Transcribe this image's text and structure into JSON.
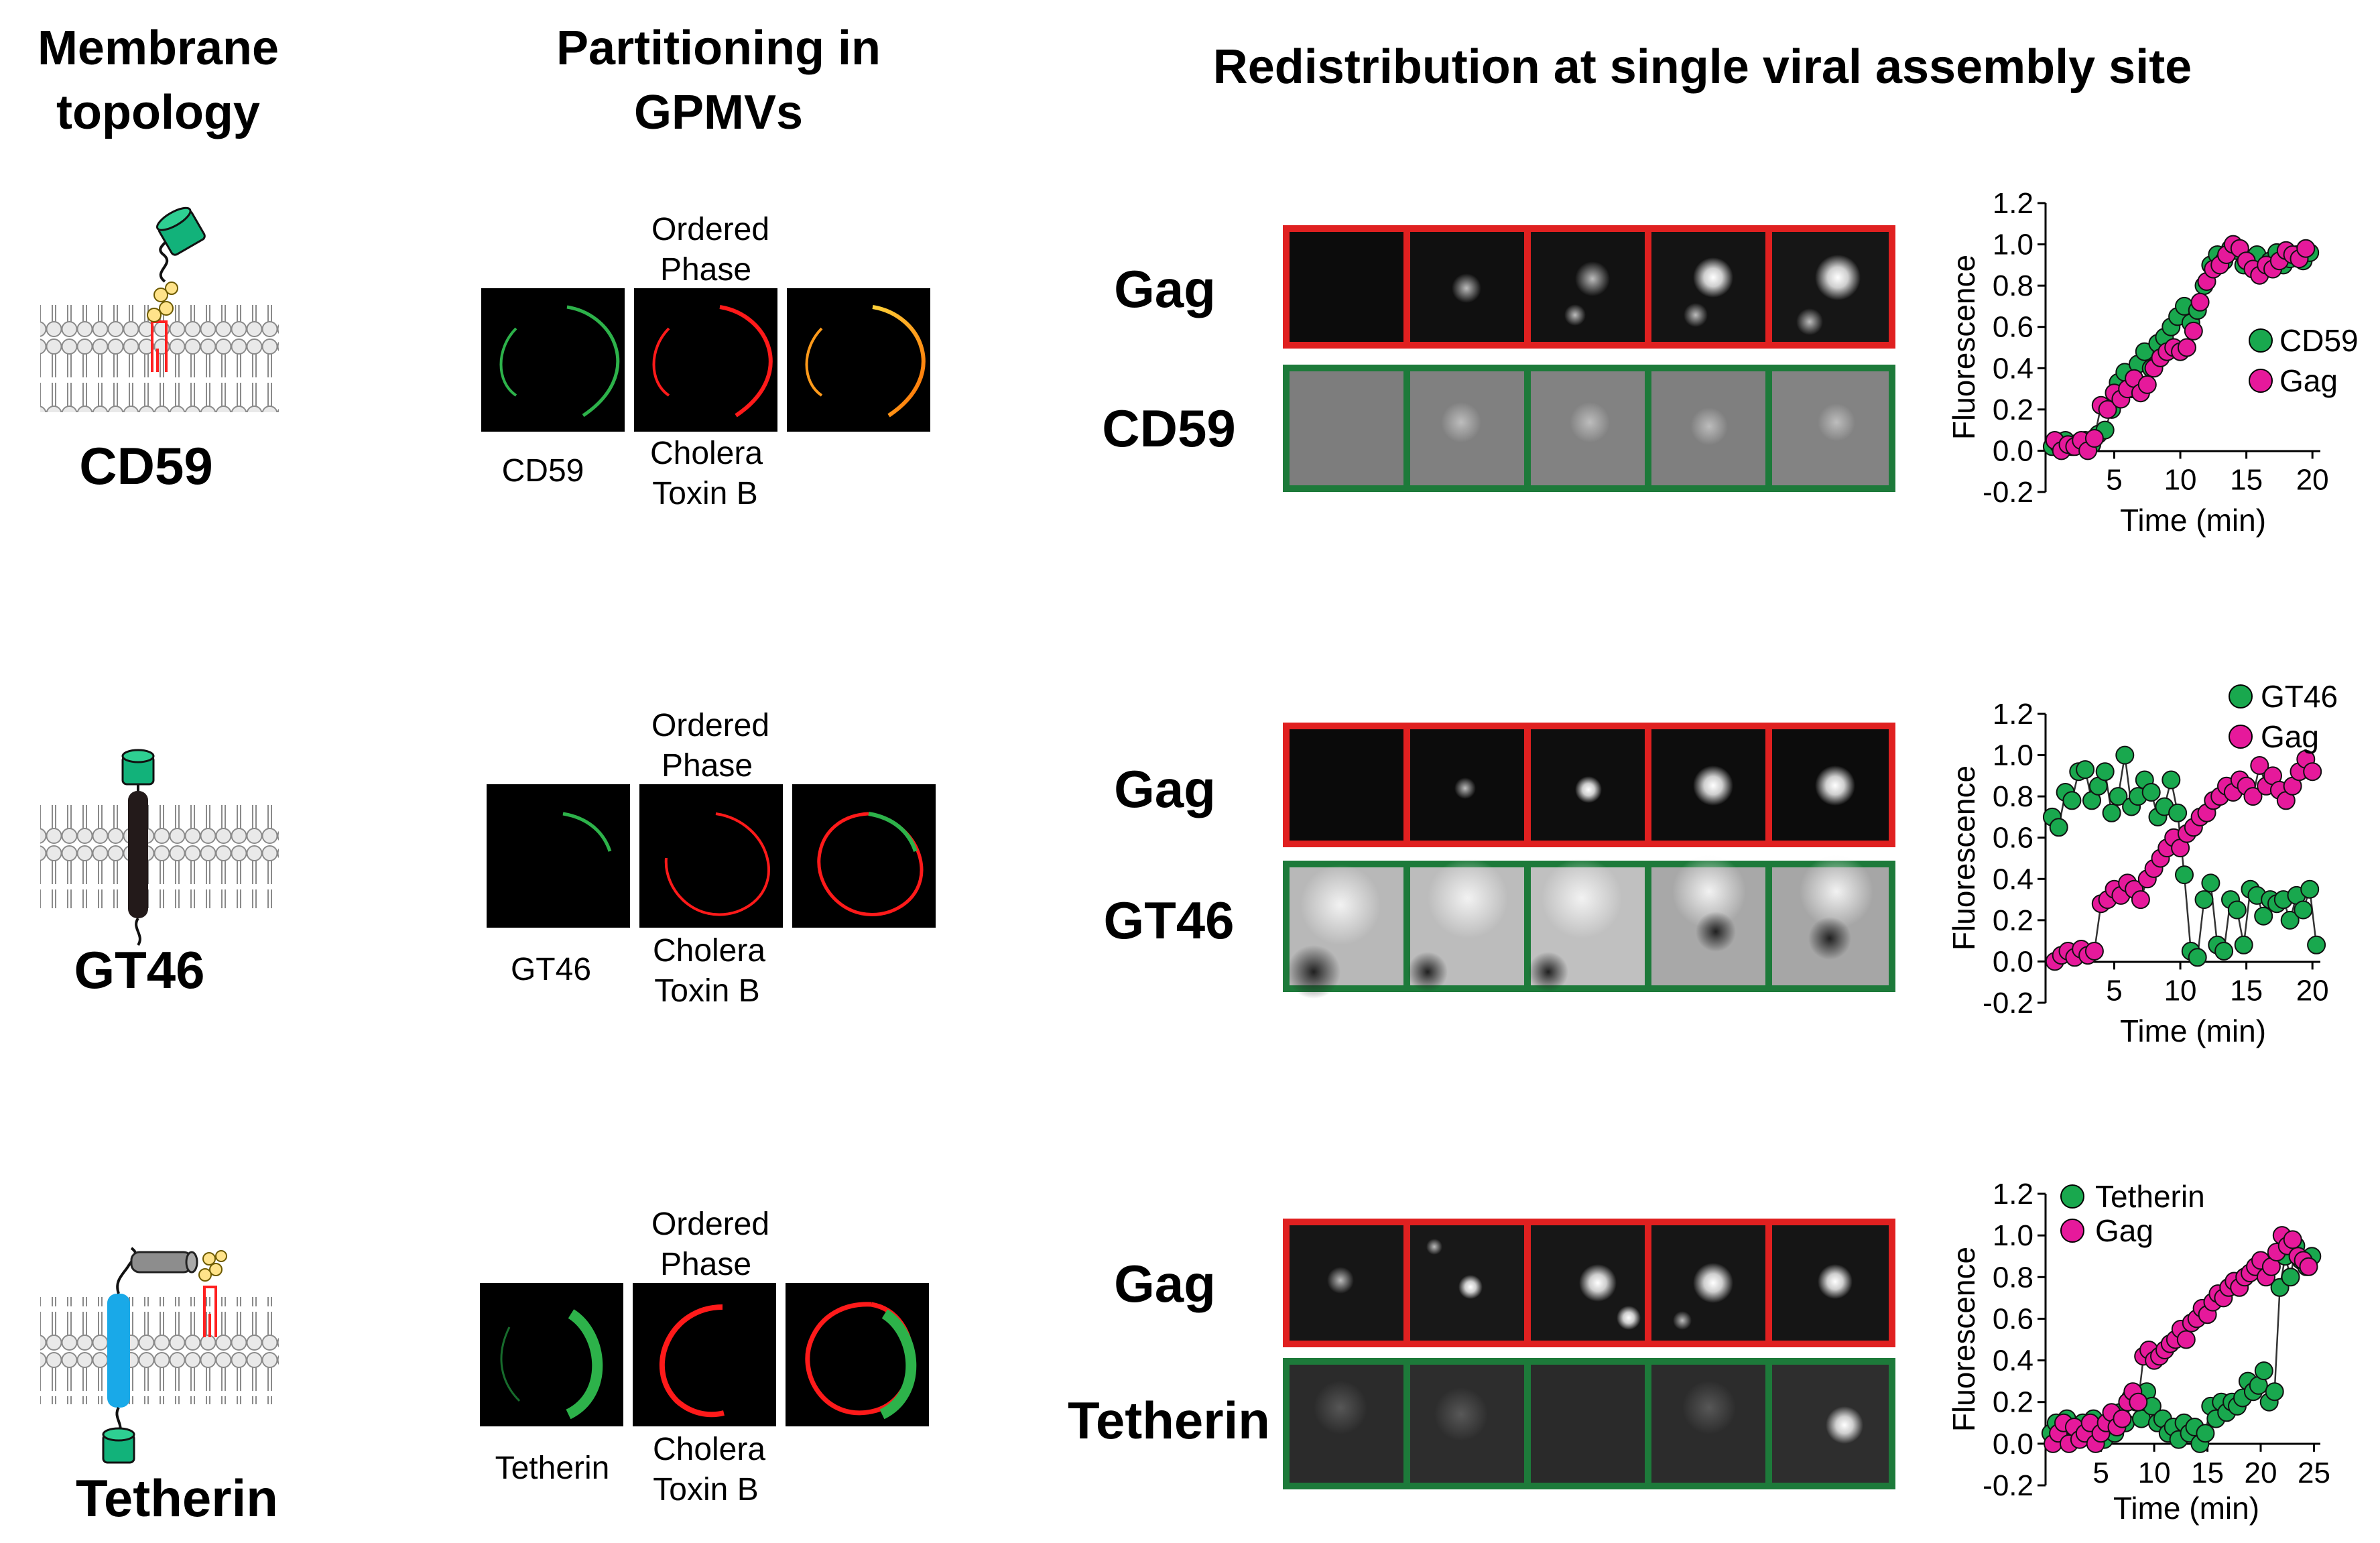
{
  "headers": {
    "topology": [
      "Membrane",
      "topology"
    ],
    "partitioning": [
      "Partitioning in",
      "GPMVs"
    ],
    "redistribution": "Redistribution at single viral assembly site"
  },
  "rows": [
    {
      "protein": "CD59",
      "gpmv_labels": {
        "ordered": [
          "Ordered",
          "Phase"
        ],
        "protein": "CD59",
        "toxin": [
          "Cholera",
          "Toxin B"
        ]
      },
      "channels": [
        "Gag",
        "CD59"
      ],
      "colors": {
        "protein_channel": "#2db24a",
        "toxin_channel": "#ff1a1a"
      }
    },
    {
      "protein": "GT46",
      "gpmv_labels": {
        "ordered": [
          "Ordered",
          "Phase"
        ],
        "protein": "GT46",
        "toxin": [
          "Cholera",
          "Toxin B"
        ]
      },
      "channels": [
        "Gag",
        "GT46"
      ],
      "colors": {
        "protein_channel": "#2db24a",
        "toxin_channel": "#ff1a1a"
      }
    },
    {
      "protein": "Tetherin",
      "gpmv_labels": {
        "ordered": [
          "Ordered",
          "Phase"
        ],
        "protein": "Tetherin",
        "toxin": [
          "Cholera",
          "Toxin B"
        ]
      },
      "channels": [
        "Gag",
        "Tetherin"
      ],
      "colors": {
        "protein_channel": "#2db24a",
        "toxin_channel": "#ff1a1a"
      }
    }
  ],
  "colors": {
    "gag": "#e6199b",
    "protein": "#19a84e",
    "gag_frame": "#e02020",
    "protein_frame": "#1d7a3a"
  },
  "chart_data": [
    {
      "type": "scatter",
      "ylabel": "Fluorescence",
      "xlabel": "Time (min)",
      "ylim": [
        -0.2,
        1.2
      ],
      "yticks": [
        "1.2",
        "1.0",
        "0.8",
        "0.6",
        "0.4",
        "0.2",
        "0.0",
        "-0.2"
      ],
      "xlim": [
        0,
        21
      ],
      "xticks": [
        "5",
        "10",
        "15",
        "20"
      ],
      "legend_position": "right",
      "series": [
        {
          "name": "CD59",
          "color": "#19a84e",
          "x": [
            0.3,
            0.8,
            1.3,
            1.8,
            2.3,
            2.8,
            3.3,
            3.8,
            4.3,
            4.8,
            5.3,
            5.8,
            6.3,
            6.8,
            7.3,
            7.8,
            8.3,
            8.8,
            9.3,
            9.8,
            10.3,
            10.8,
            11.3,
            11.8,
            12.3,
            12.8,
            13.3,
            13.8,
            14.3,
            14.8,
            15.3,
            15.8,
            16.3,
            16.8,
            17.3,
            17.8,
            18.3,
            18.8,
            19.3,
            19.8
          ],
          "y": [
            0.02,
            0.03,
            0.05,
            0.02,
            0.04,
            0.05,
            0.03,
            0.08,
            0.1,
            0.2,
            0.33,
            0.38,
            0.3,
            0.42,
            0.48,
            0.4,
            0.52,
            0.55,
            0.6,
            0.65,
            0.7,
            0.62,
            0.68,
            0.8,
            0.9,
            0.95,
            0.92,
            0.98,
            0.97,
            0.9,
            0.92,
            0.95,
            0.88,
            0.92,
            0.96,
            0.9,
            0.93,
            0.95,
            0.92,
            0.96
          ]
        },
        {
          "name": "Gag",
          "color": "#e6199b",
          "x": [
            0.5,
            1.0,
            1.5,
            2.0,
            2.5,
            3.0,
            3.5,
            4.0,
            4.5,
            5.0,
            5.5,
            6.0,
            6.5,
            7.0,
            7.5,
            8.0,
            8.5,
            9.0,
            9.5,
            10.0,
            10.5,
            11.0,
            11.5,
            12.0,
            12.5,
            13.0,
            13.5,
            14.0,
            14.5,
            15.0,
            15.5,
            16.0,
            16.5,
            17.0,
            17.5,
            18.0,
            18.5,
            19.0,
            19.5
          ],
          "y": [
            0.05,
            0.0,
            0.03,
            0.02,
            0.05,
            0.0,
            0.06,
            0.22,
            0.2,
            0.28,
            0.25,
            0.3,
            0.35,
            0.28,
            0.32,
            0.4,
            0.45,
            0.48,
            0.5,
            0.48,
            0.5,
            0.58,
            0.72,
            0.82,
            0.88,
            0.9,
            0.95,
            1.0,
            0.98,
            0.92,
            0.88,
            0.85,
            0.9,
            0.88,
            0.92,
            0.97,
            0.95,
            0.93,
            0.98
          ]
        }
      ]
    },
    {
      "type": "scatter",
      "ylabel": "Fluorescence",
      "xlabel": "Time (min)",
      "ylim": [
        -0.2,
        1.2
      ],
      "yticks": [
        "1.2",
        "1.0",
        "0.8",
        "0.6",
        "0.4",
        "0.2",
        "0.0",
        "-0.2"
      ],
      "xlim": [
        0,
        21
      ],
      "xticks": [
        "5",
        "10",
        "15",
        "20"
      ],
      "legend_position": "top-right",
      "series": [
        {
          "name": "GT46",
          "color": "#19a84e",
          "x": [
            0.3,
            0.8,
            1.3,
            1.8,
            2.3,
            2.8,
            3.3,
            3.8,
            4.3,
            4.8,
            5.3,
            5.8,
            6.3,
            6.8,
            7.3,
            7.8,
            8.3,
            8.8,
            9.3,
            9.8,
            10.3,
            10.8,
            11.3,
            11.8,
            12.3,
            12.8,
            13.3,
            13.8,
            14.3,
            14.8,
            15.3,
            15.8,
            16.3,
            16.8,
            17.3,
            17.8,
            18.3,
            18.8,
            19.3,
            19.8,
            20.3
          ],
          "y": [
            0.7,
            0.65,
            0.82,
            0.78,
            0.92,
            0.93,
            0.78,
            0.85,
            0.92,
            0.72,
            0.8,
            1.0,
            0.75,
            0.8,
            0.88,
            0.82,
            0.7,
            0.75,
            0.88,
            0.72,
            0.42,
            0.05,
            0.02,
            0.3,
            0.38,
            0.08,
            0.05,
            0.3,
            0.25,
            0.08,
            0.35,
            0.32,
            0.22,
            0.3,
            0.28,
            0.3,
            0.2,
            0.32,
            0.25,
            0.35,
            0.08
          ]
        },
        {
          "name": "Gag",
          "color": "#e6199b",
          "x": [
            0.5,
            1.0,
            1.5,
            2.0,
            2.5,
            3.0,
            3.5,
            4.0,
            4.5,
            5.0,
            5.5,
            6.0,
            6.5,
            7.0,
            7.5,
            8.0,
            8.5,
            9.0,
            9.5,
            10.0,
            10.5,
            11.0,
            11.5,
            12.0,
            12.5,
            13.0,
            13.5,
            14.0,
            14.5,
            15.0,
            15.5,
            16.0,
            16.5,
            17.0,
            17.5,
            18.0,
            18.5,
            19.0,
            19.5,
            20.0
          ],
          "y": [
            0.0,
            0.03,
            0.05,
            0.02,
            0.06,
            0.03,
            0.05,
            0.28,
            0.3,
            0.35,
            0.32,
            0.38,
            0.35,
            0.3,
            0.4,
            0.45,
            0.5,
            0.55,
            0.6,
            0.55,
            0.62,
            0.65,
            0.7,
            0.72,
            0.78,
            0.8,
            0.85,
            0.82,
            0.88,
            0.85,
            0.8,
            0.95,
            0.85,
            0.9,
            0.83,
            0.78,
            0.85,
            0.92,
            0.98,
            0.92
          ]
        }
      ]
    },
    {
      "type": "scatter",
      "ylabel": "Fluorescence",
      "xlabel": "Time (min)",
      "ylim": [
        -0.2,
        1.2
      ],
      "yticks": [
        "1.2",
        "1.0",
        "0.8",
        "0.6",
        "0.4",
        "0.2",
        "0.0",
        "-0.2"
      ],
      "xlim": [
        0,
        26
      ],
      "xticks": [
        "5",
        "10",
        "15",
        "20",
        "25"
      ],
      "legend_position": "top-left",
      "series": [
        {
          "name": "Tetherin",
          "color": "#19a84e",
          "x": [
            0.3,
            0.8,
            1.3,
            1.8,
            2.3,
            2.8,
            3.3,
            3.8,
            4.3,
            4.8,
            5.3,
            5.8,
            6.3,
            6.8,
            7.3,
            7.8,
            8.3,
            8.8,
            9.3,
            9.8,
            10.3,
            10.8,
            11.3,
            11.8,
            12.3,
            12.8,
            13.3,
            13.8,
            14.3,
            14.8,
            15.3,
            15.8,
            16.3,
            16.8,
            17.3,
            17.8,
            18.3,
            18.8,
            19.3,
            19.8,
            20.3,
            20.8,
            21.3,
            21.8,
            22.3,
            22.8,
            23.3,
            23.8,
            24.3,
            24.8
          ],
          "y": [
            0.05,
            0.1,
            0.02,
            0.12,
            0.08,
            0.05,
            0.1,
            0.05,
            0.12,
            0.08,
            0.02,
            0.1,
            0.05,
            0.15,
            0.1,
            0.22,
            0.2,
            0.12,
            0.25,
            0.18,
            0.1,
            0.12,
            0.05,
            0.08,
            0.02,
            0.1,
            0.05,
            0.08,
            0.0,
            0.05,
            0.18,
            0.12,
            0.2,
            0.15,
            0.2,
            0.18,
            0.22,
            0.3,
            0.25,
            0.28,
            0.35,
            0.2,
            0.25,
            0.75,
            0.9,
            0.8,
            0.95,
            0.88,
            0.85,
            0.9
          ]
        },
        {
          "name": "Gag",
          "color": "#e6199b",
          "x": [
            0.5,
            1.0,
            1.5,
            2.0,
            2.5,
            3.0,
            3.5,
            4.0,
            4.5,
            5.0,
            5.5,
            6.0,
            6.5,
            7.0,
            7.5,
            8.0,
            8.5,
            9.0,
            9.5,
            10.0,
            10.5,
            11.0,
            11.5,
            12.0,
            12.5,
            13.0,
            13.5,
            14.0,
            14.5,
            15.0,
            15.5,
            16.0,
            16.5,
            17.0,
            17.5,
            18.0,
            18.5,
            19.0,
            19.5,
            20.0,
            20.5,
            21.0,
            21.5,
            22.0,
            22.5,
            23.0,
            23.5,
            24.0,
            24.5
          ],
          "y": [
            0.0,
            0.05,
            0.1,
            0.0,
            0.08,
            0.02,
            0.05,
            0.1,
            0.0,
            0.05,
            0.1,
            0.15,
            0.08,
            0.12,
            0.2,
            0.25,
            0.2,
            0.42,
            0.45,
            0.4,
            0.42,
            0.45,
            0.48,
            0.5,
            0.55,
            0.5,
            0.58,
            0.6,
            0.65,
            0.62,
            0.68,
            0.72,
            0.7,
            0.75,
            0.78,
            0.75,
            0.8,
            0.82,
            0.85,
            0.88,
            0.8,
            0.85,
            0.92,
            1.0,
            0.95,
            0.98,
            0.9,
            0.88,
            0.85
          ]
        }
      ]
    }
  ]
}
